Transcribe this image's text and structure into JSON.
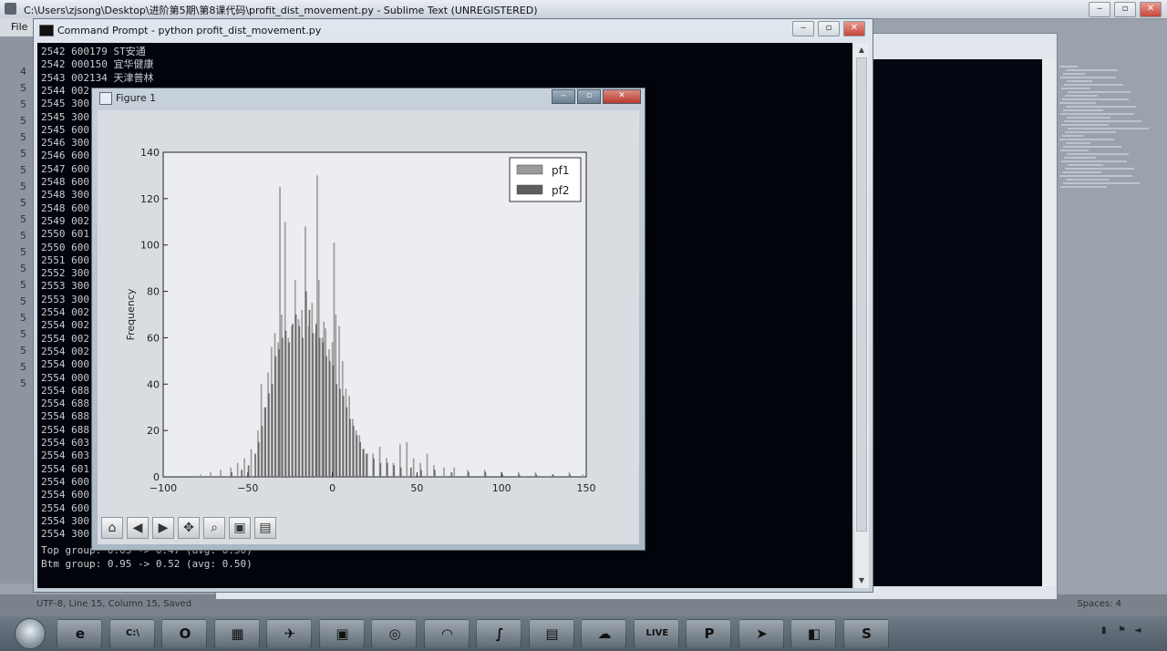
{
  "sublime": {
    "title": "C:\\Users\\zjsong\\Desktop\\进阶第5期\\第8课代码\\profit_dist_movement.py - Sublime Text (UNREGISTERED)",
    "menu_label": "File",
    "gutter": [
      "4",
      "5",
      "5",
      "5",
      "5",
      "5",
      "5",
      "5",
      "5",
      "5",
      "5",
      "5",
      "5",
      "5",
      "5",
      "5",
      "5",
      "5",
      "5",
      "5"
    ],
    "status_text": "UTF-8, Line 15, Column 15, Saved",
    "spaces_label": "Spaces: 4"
  },
  "cmd": {
    "title": "Command Prompt - python  profit_dist_movement.py",
    "lines": [
      "2542 600179 ST安通",
      "2542 000150 宜华健康",
      "2543 002134 天津普林",
      "2544 002",
      "2545 300",
      "2545 300",
      "2545 600",
      "2546 300",
      "2546 600",
      "2547 600",
      "2548 600",
      "2548 300",
      "2548 600",
      "2549 002",
      "2550 601",
      "2550 600",
      "2551 600",
      "2552 300",
      "2553 300",
      "2553 300",
      "2554 002",
      "2554 002",
      "2554 002",
      "2554 002",
      "2554 000",
      "2554 000",
      "2554 688",
      "2554 688",
      "2554 688",
      "2554 688",
      "2554 603",
      "2554 603",
      "2554 601",
      "2554 600",
      "2554 600",
      "2554 600",
      "2554 300",
      "2554 300"
    ],
    "top_group": "Top group: 0.05 -> 0.47 (avg: 0.50)",
    "btm_group": "Btm group: 0.95 -> 0.52 (avg: 0.50)"
  },
  "figure": {
    "title": "Figure 1",
    "toolbar": [
      "home-icon",
      "back-icon",
      "forward-icon",
      "pan-icon",
      "zoom-icon",
      "configure-subplots-icon",
      "save-icon"
    ],
    "toolbar_glyphs": [
      "⌂",
      "◀",
      "▶",
      "✥",
      "⌕",
      "▣",
      "▤"
    ]
  },
  "chart_data": {
    "type": "bar",
    "title": "",
    "xlabel": "",
    "ylabel": "Frequency",
    "xlim": [
      -100,
      150
    ],
    "ylim": [
      0,
      140
    ],
    "xticks": [
      -100,
      -50,
      0,
      50,
      100,
      150
    ],
    "yticks": [
      0,
      20,
      40,
      60,
      80,
      100,
      120,
      140
    ],
    "legend_position": "top-right",
    "grid": false,
    "series": [
      {
        "name": "pf1",
        "color": "#9a9a9a",
        "x": [
          -78,
          -72,
          -66,
          -60,
          -56,
          -52,
          -48,
          -44,
          -42,
          -40,
          -38,
          -36,
          -34,
          -32,
          -31,
          -30,
          -28,
          -26,
          -24,
          -22,
          -20,
          -18,
          -16,
          -14,
          -12,
          -10,
          -9,
          -8,
          -6,
          -5,
          -4,
          -2,
          0,
          1,
          2,
          4,
          6,
          8,
          10,
          12,
          14,
          16,
          18,
          20,
          24,
          28,
          32,
          36,
          40,
          44,
          48,
          52,
          56,
          60,
          66,
          72,
          80,
          90,
          100,
          110,
          120,
          130,
          140,
          148
        ],
        "values": [
          1,
          2,
          3,
          4,
          6,
          8,
          12,
          20,
          40,
          30,
          45,
          56,
          62,
          58,
          125,
          70,
          110,
          60,
          65,
          85,
          68,
          72,
          108,
          65,
          75,
          62,
          130,
          85,
          60,
          67,
          64,
          55,
          58,
          101,
          70,
          65,
          50,
          38,
          35,
          25,
          20,
          18,
          12,
          10,
          10,
          13,
          8,
          6,
          14,
          15,
          8,
          6,
          10,
          5,
          4,
          4,
          3,
          3,
          2,
          2,
          2,
          1,
          2,
          1
        ]
      },
      {
        "name": "pf2",
        "color": "#5e5e5e",
        "x": [
          -60,
          -54,
          -50,
          -46,
          -44,
          -42,
          -40,
          -38,
          -36,
          -34,
          -32,
          -30,
          -28,
          -26,
          -24,
          -22,
          -20,
          -18,
          -16,
          -14,
          -12,
          -10,
          -8,
          -6,
          -4,
          -2,
          0,
          2,
          4,
          6,
          8,
          10,
          12,
          14,
          16,
          18,
          20,
          24,
          28,
          32,
          36,
          40,
          46,
          52,
          60,
          70,
          80,
          90,
          100,
          110,
          120,
          130,
          140
        ],
        "values": [
          2,
          3,
          5,
          10,
          15,
          22,
          30,
          36,
          40,
          52,
          55,
          60,
          63,
          58,
          66,
          70,
          65,
          60,
          80,
          72,
          62,
          66,
          60,
          58,
          52,
          50,
          48,
          40,
          38,
          35,
          30,
          25,
          22,
          18,
          15,
          12,
          10,
          8,
          6,
          6,
          5,
          4,
          4,
          3,
          3,
          2,
          2,
          2,
          1,
          1,
          1,
          1,
          1
        ]
      }
    ]
  },
  "taskbar": {
    "apps": [
      "start-orb",
      "ie",
      "cmd",
      "outlook",
      "paint",
      "app5",
      "app6",
      "chrome",
      "app8",
      "sublime-j",
      "calculator",
      "app11",
      "live",
      "powerpoint",
      "telegram",
      "app15",
      "sublime"
    ],
    "glyphs": [
      "e",
      "C:\\",
      "O",
      "▦",
      "✈",
      "▣",
      "◎",
      "◠",
      "∫",
      "▤",
      "☁",
      "LIVE",
      "P",
      "➤",
      "◧",
      "S"
    ]
  }
}
